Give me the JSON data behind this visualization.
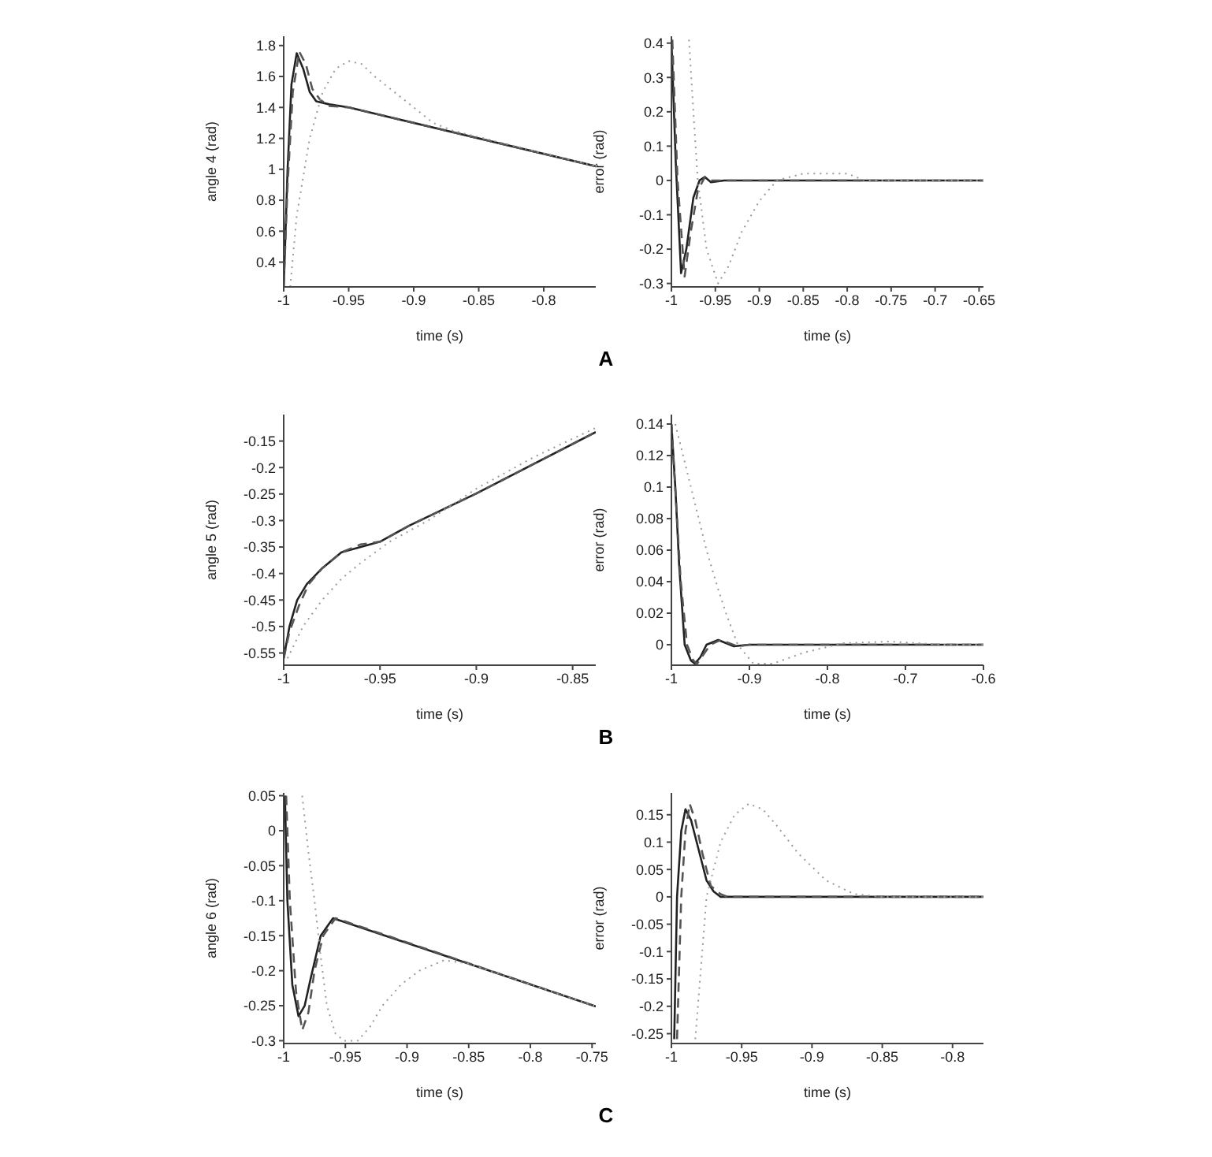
{
  "chart_data": [
    {
      "type": "line",
      "xlabel": "time (s)",
      "ylabel": "angle 4 (rad)",
      "annotations": [
        "A"
      ],
      "xlim": [
        -1,
        -0.76
      ],
      "xticks": [
        -1,
        -0.95,
        -0.9,
        -0.85,
        -0.8
      ],
      "ylim": [
        0.24,
        1.86
      ],
      "yticks": [
        0.4,
        0.6,
        0.8,
        1,
        1.2,
        1.4,
        1.6,
        1.8
      ],
      "grid": false,
      "legend": false,
      "marker": "none",
      "series": [
        {
          "color": "#222222",
          "line_style": "solid",
          "x": [
            -1,
            -0.997,
            -0.994,
            -0.99,
            -0.985,
            -0.98,
            -0.975,
            -0.965,
            -0.95,
            -0.76
          ],
          "values": [
            0.24,
            1.0,
            1.55,
            1.75,
            1.65,
            1.5,
            1.44,
            1.42,
            1.4,
            1.02
          ]
        },
        {
          "color": "#555555",
          "line_style": "dashed",
          "x": [
            -1,
            -0.997,
            -0.993,
            -0.988,
            -0.983,
            -0.978,
            -0.972,
            -0.965,
            -0.95,
            -0.76
          ],
          "values": [
            0.24,
            0.9,
            1.5,
            1.76,
            1.68,
            1.52,
            1.45,
            1.41,
            1.4,
            1.02
          ]
        },
        {
          "color": "#999999",
          "line_style": "dotted",
          "x": [
            -0.995,
            -0.99,
            -0.98,
            -0.97,
            -0.96,
            -0.95,
            -0.94,
            -0.93,
            -0.915,
            -0.9,
            -0.885,
            -0.87,
            -0.76
          ],
          "values": [
            0.24,
            0.7,
            1.2,
            1.5,
            1.65,
            1.7,
            1.68,
            1.6,
            1.5,
            1.4,
            1.3,
            1.25,
            1.02
          ]
        }
      ]
    },
    {
      "type": "line",
      "xlabel": "time (s)",
      "ylabel": "error (rad)",
      "xlim": [
        -1,
        -0.645
      ],
      "xticks": [
        -1,
        -0.95,
        -0.9,
        -0.85,
        -0.8,
        -0.75,
        -0.7,
        -0.65
      ],
      "ylim": [
        -0.31,
        0.42
      ],
      "yticks": [
        -0.3,
        -0.2,
        -0.1,
        0,
        0.1,
        0.2,
        0.3,
        0.4
      ],
      "grid": false,
      "legend": false,
      "marker": "none",
      "series": [
        {
          "color": "#222222",
          "line_style": "solid",
          "x": [
            -1,
            -0.995,
            -0.989,
            -0.983,
            -0.975,
            -0.968,
            -0.962,
            -0.955,
            -0.94,
            -0.645
          ],
          "values": [
            0.41,
            0.05,
            -0.27,
            -0.2,
            -0.05,
            0.0,
            0.01,
            -0.005,
            0,
            0
          ]
        },
        {
          "color": "#555555",
          "line_style": "dashed",
          "x": [
            -0.999,
            -0.993,
            -0.985,
            -0.978,
            -0.97,
            -0.962,
            -0.955,
            -0.945,
            -0.645
          ],
          "values": [
            0.41,
            0.0,
            -0.28,
            -0.15,
            -0.03,
            0.01,
            0.0,
            0,
            0
          ]
        },
        {
          "color": "#999999",
          "line_style": "dotted",
          "x": [
            -0.98,
            -0.975,
            -0.97,
            -0.96,
            -0.947,
            -0.935,
            -0.92,
            -0.9,
            -0.88,
            -0.85,
            -0.8,
            -0.78,
            -0.645
          ],
          "values": [
            0.41,
            0.2,
            0.0,
            -0.2,
            -0.3,
            -0.25,
            -0.15,
            -0.06,
            0,
            0.02,
            0.02,
            0,
            0
          ]
        }
      ]
    },
    {
      "type": "line",
      "xlabel": "time (s)",
      "ylabel": "angle 5 (rad)",
      "annotations": [
        "B"
      ],
      "xlim": [
        -1,
        -0.838
      ],
      "xticks": [
        -1,
        -0.95,
        -0.9,
        -0.85
      ],
      "ylim": [
        -0.573,
        -0.1
      ],
      "yticks": [
        -0.55,
        -0.5,
        -0.45,
        -0.4,
        -0.35,
        -0.3,
        -0.25,
        -0.2,
        -0.15
      ],
      "grid": false,
      "legend": false,
      "marker": "none",
      "series": [
        {
          "color": "#222222",
          "line_style": "solid",
          "x": [
            -1,
            -0.997,
            -0.993,
            -0.988,
            -0.98,
            -0.97,
            -0.96,
            -0.95,
            -0.935,
            -0.9,
            -0.838
          ],
          "values": [
            -0.56,
            -0.5,
            -0.45,
            -0.42,
            -0.39,
            -0.36,
            -0.35,
            -0.34,
            -0.31,
            -0.249,
            -0.133
          ]
        },
        {
          "color": "#555555",
          "line_style": "dashed",
          "x": [
            -1,
            -0.997,
            -0.992,
            -0.987,
            -0.98,
            -0.97,
            -0.96,
            -0.95,
            -0.935,
            -0.9,
            -0.838
          ],
          "values": [
            -0.56,
            -0.51,
            -0.46,
            -0.42,
            -0.39,
            -0.36,
            -0.345,
            -0.34,
            -0.31,
            -0.249,
            -0.133
          ]
        },
        {
          "color": "#999999",
          "line_style": "dotted",
          "x": [
            -0.998,
            -0.99,
            -0.98,
            -0.97,
            -0.96,
            -0.945,
            -0.925,
            -0.9,
            -0.87,
            -0.838
          ],
          "values": [
            -0.56,
            -0.5,
            -0.45,
            -0.41,
            -0.38,
            -0.34,
            -0.3,
            -0.24,
            -0.18,
            -0.125
          ]
        }
      ]
    },
    {
      "type": "line",
      "xlabel": "time (s)",
      "ylabel": "error (rad)",
      "xlim": [
        -1,
        -0.6
      ],
      "xticks": [
        -1,
        -0.9,
        -0.8,
        -0.7,
        -0.6
      ],
      "ylim": [
        -0.013,
        0.146
      ],
      "yticks": [
        0,
        0.02,
        0.04,
        0.06,
        0.08,
        0.1,
        0.12,
        0.14
      ],
      "grid": false,
      "legend": false,
      "marker": "none",
      "series": [
        {
          "color": "#222222",
          "line_style": "solid",
          "x": [
            -1,
            -0.995,
            -0.99,
            -0.983,
            -0.975,
            -0.97,
            -0.963,
            -0.955,
            -0.94,
            -0.92,
            -0.9,
            -0.6
          ],
          "values": [
            0.14,
            0.1,
            0.05,
            0.0,
            -0.01,
            -0.012,
            -0.008,
            0,
            0.003,
            -0.001,
            0,
            0
          ]
        },
        {
          "color": "#555555",
          "line_style": "dashed",
          "x": [
            -1,
            -0.994,
            -0.988,
            -0.98,
            -0.972,
            -0.967,
            -0.96,
            -0.95,
            -0.937,
            -0.915,
            -0.9,
            -0.6
          ],
          "values": [
            0.14,
            0.09,
            0.04,
            0.0,
            -0.01,
            -0.012,
            -0.007,
            0,
            0.003,
            -0.001,
            0,
            0
          ]
        },
        {
          "color": "#999999",
          "line_style": "dotted",
          "x": [
            -0.995,
            -0.985,
            -0.975,
            -0.965,
            -0.955,
            -0.94,
            -0.93,
            -0.915,
            -0.895,
            -0.87,
            -0.83,
            -0.78,
            -0.72,
            -0.65,
            -0.6
          ],
          "values": [
            0.14,
            0.12,
            0.1,
            0.08,
            0.06,
            0.035,
            0.02,
            0,
            -0.012,
            -0.012,
            -0.005,
            0.001,
            0.002,
            0,
            0
          ]
        }
      ]
    },
    {
      "type": "line",
      "xlabel": "time (s)",
      "ylabel": "angle 6 (rad)",
      "annotations": [
        "C"
      ],
      "xlim": [
        -1,
        -0.747
      ],
      "xticks": [
        -1,
        -0.95,
        -0.9,
        -0.85,
        -0.8,
        -0.75
      ],
      "ylim": [
        -0.304,
        0.054
      ],
      "yticks": [
        -0.3,
        -0.25,
        -0.2,
        -0.15,
        -0.1,
        -0.05,
        0,
        0.05
      ],
      "grid": false,
      "legend": false,
      "marker": "none",
      "series": [
        {
          "color": "#222222",
          "line_style": "solid",
          "x": [
            -0.999,
            -0.997,
            -0.993,
            -0.988,
            -0.983,
            -0.978,
            -0.97,
            -0.96,
            -0.747
          ],
          "values": [
            0.05,
            -0.1,
            -0.22,
            -0.265,
            -0.25,
            -0.21,
            -0.15,
            -0.125,
            -0.251
          ]
        },
        {
          "color": "#555555",
          "line_style": "dashed",
          "x": [
            -0.998,
            -0.995,
            -0.99,
            -0.985,
            -0.98,
            -0.975,
            -0.968,
            -0.958,
            -0.747
          ],
          "values": [
            0.05,
            -0.1,
            -0.23,
            -0.285,
            -0.26,
            -0.2,
            -0.15,
            -0.125,
            -0.251
          ]
        },
        {
          "color": "#999999",
          "line_style": "dotted",
          "x": [
            -0.985,
            -0.98,
            -0.975,
            -0.97,
            -0.965,
            -0.958,
            -0.951,
            -0.94,
            -0.93,
            -0.92,
            -0.905,
            -0.89,
            -0.87,
            -0.85,
            -0.747
          ],
          "values": [
            0.05,
            -0.03,
            -0.1,
            -0.18,
            -0.25,
            -0.29,
            -0.3,
            -0.3,
            -0.28,
            -0.25,
            -0.22,
            -0.2,
            -0.185,
            -0.19,
            -0.251
          ]
        }
      ]
    },
    {
      "type": "line",
      "xlabel": "time (s)",
      "ylabel": "error (rad)",
      "xlim": [
        -1,
        -0.778
      ],
      "xticks": [
        -1,
        -0.95,
        -0.9,
        -0.85,
        -0.8
      ],
      "ylim": [
        -0.268,
        0.19
      ],
      "yticks": [
        -0.25,
        -0.2,
        -0.15,
        -0.1,
        -0.05,
        0,
        0.05,
        0.1,
        0.15
      ],
      "grid": false,
      "legend": false,
      "marker": "none",
      "series": [
        {
          "color": "#222222",
          "line_style": "solid",
          "x": [
            -0.998,
            -0.996,
            -0.993,
            -0.99,
            -0.986,
            -0.982,
            -0.978,
            -0.975,
            -0.97,
            -0.965,
            -0.778
          ],
          "values": [
            -0.26,
            0.0,
            0.12,
            0.16,
            0.14,
            0.1,
            0.06,
            0.03,
            0.01,
            0,
            0
          ]
        },
        {
          "color": "#555555",
          "line_style": "dashed",
          "x": [
            -0.996,
            -0.993,
            -0.99,
            -0.987,
            -0.983,
            -0.978,
            -0.972,
            -0.965,
            -0.96,
            -0.778
          ],
          "values": [
            -0.26,
            0.0,
            0.12,
            0.17,
            0.14,
            0.08,
            0.02,
            0.005,
            0,
            0
          ]
        },
        {
          "color": "#999999",
          "line_style": "dotted",
          "x": [
            -0.983,
            -0.975,
            -0.965,
            -0.955,
            -0.945,
            -0.935,
            -0.925,
            -0.91,
            -0.89,
            -0.87,
            -0.85,
            -0.778
          ],
          "values": [
            -0.26,
            0.0,
            0.1,
            0.15,
            0.17,
            0.16,
            0.13,
            0.08,
            0.03,
            0.005,
            0,
            0
          ]
        }
      ]
    }
  ]
}
